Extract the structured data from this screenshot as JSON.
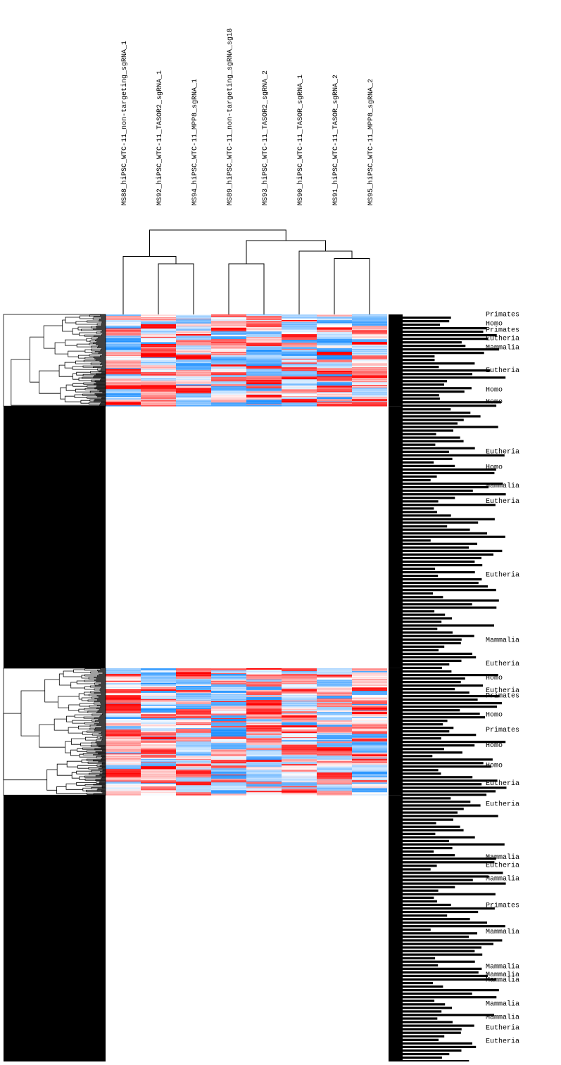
{
  "chart_data": {
    "type": "heatmap",
    "title": "",
    "xlabel": "",
    "ylabel": "",
    "columns": [
      "MS88_hiPSC_WTC-11_non-targeting_sgRNA_1",
      "MS92_hiPSC_WTC-11_TASOR2_sgRNA_1",
      "MS94_hiPSC_WTC-11_MPP8_sgRNA_1",
      "MS89_hiPSC_WTC-11_non-targeting_sgRNA_sg18",
      "MS93_hiPSC_WTC-11_TASOR2_sgRNA_2",
      "MS90_hiPSC_WTC-11_TASOR_sgRNA_1",
      "MS91_hiPSC_WTC-11_TASOR_sgRNA_2",
      "MS95_hiPSC_WTC-11_MPP8_sgRNA_2"
    ],
    "column_dendrogram": {
      "order": [
        0,
        1,
        2,
        3,
        4,
        5,
        6,
        7
      ],
      "merges": [
        {
          "left": "c1",
          "right": "c2",
          "height": 0.48
        },
        {
          "left": "c0",
          "right": "m0",
          "height": 0.55
        },
        {
          "left": "c3",
          "right": "c4",
          "height": 0.48
        },
        {
          "left": "c6",
          "right": "c7",
          "height": 0.53
        },
        {
          "left": "c5",
          "right": "m3",
          "height": 0.6
        },
        {
          "left": "m2",
          "right": "m4",
          "height": 0.7
        },
        {
          "left": "m1",
          "right": "m5",
          "height": 0.8
        }
      ]
    },
    "color_scale": {
      "low": "#1e90ff",
      "mid": "#ffffff",
      "high": "#ff0000",
      "range": [
        -2,
        2
      ]
    },
    "row_blocks": [
      {
        "name": "block-1",
        "rows": 130,
        "filled": true,
        "seed": 11
      },
      {
        "name": "gap-1",
        "rows": 372,
        "filled": false
      },
      {
        "name": "block-2",
        "rows": 180,
        "filled": true,
        "seed": 29
      },
      {
        "name": "gap-2",
        "rows": 378,
        "filled": false
      }
    ],
    "visible_row_labels": [
      {
        "text": "Primates",
        "block": "block-1",
        "frac": 0.02
      },
      {
        "text": "Homo",
        "block": "block-1",
        "frac": 0.12
      },
      {
        "text": "Primates",
        "block": "block-1",
        "frac": 0.19
      },
      {
        "text": "Eutheria",
        "block": "block-1",
        "frac": 0.28
      },
      {
        "text": "Mammalia",
        "block": "block-1",
        "frac": 0.38
      },
      {
        "text": "Eutheria",
        "block": "block-1",
        "frac": 0.63
      },
      {
        "text": "Homo",
        "block": "block-1",
        "frac": 0.84
      },
      {
        "text": "Homo",
        "block": "block-1",
        "frac": 0.97
      },
      {
        "text": "Eutheria",
        "block": "gap-1",
        "frac": 0.18
      },
      {
        "text": "Homo",
        "block": "gap-1",
        "frac": 0.24
      },
      {
        "text": "Mammalia",
        "block": "gap-1",
        "frac": 0.31
      },
      {
        "text": "Eutheria",
        "block": "gap-1",
        "frac": 0.37
      },
      {
        "text": "Eutheria",
        "block": "gap-1",
        "frac": 0.65
      },
      {
        "text": "Mammalia",
        "block": "gap-1",
        "frac": 0.9
      },
      {
        "text": "Eutheria",
        "block": "gap-1",
        "frac": 0.99
      },
      {
        "text": "Homo",
        "block": "block-2",
        "frac": 0.09
      },
      {
        "text": "Eutheria",
        "block": "block-2",
        "frac": 0.19
      },
      {
        "text": "Primates",
        "block": "block-2",
        "frac": 0.23
      },
      {
        "text": "Homo",
        "block": "block-2",
        "frac": 0.38
      },
      {
        "text": "Primates",
        "block": "block-2",
        "frac": 0.5
      },
      {
        "text": "Homo",
        "block": "block-2",
        "frac": 0.62
      },
      {
        "text": "Homo",
        "block": "block-2",
        "frac": 0.78
      },
      {
        "text": "Eutheria",
        "block": "block-2",
        "frac": 0.92
      },
      {
        "text": "Eutheria",
        "block": "gap-2",
        "frac": 0.04
      },
      {
        "text": "Mammalia",
        "block": "gap-2",
        "frac": 0.24
      },
      {
        "text": "Eutheria",
        "block": "gap-2",
        "frac": 0.27
      },
      {
        "text": "Mammalia",
        "block": "gap-2",
        "frac": 0.32
      },
      {
        "text": "Primates",
        "block": "gap-2",
        "frac": 0.42
      },
      {
        "text": "Mammalia",
        "block": "gap-2",
        "frac": 0.52
      },
      {
        "text": "Mammalia",
        "block": "gap-2",
        "frac": 0.65
      },
      {
        "text": "Mammalia",
        "block": "gap-2",
        "frac": 0.68
      },
      {
        "text": "Mammalia",
        "block": "gap-2",
        "frac": 0.7
      },
      {
        "text": "Mammalia",
        "block": "gap-2",
        "frac": 0.79
      },
      {
        "text": "Mammalia",
        "block": "gap-2",
        "frac": 0.84
      },
      {
        "text": "Eutheria",
        "block": "gap-2",
        "frac": 0.88
      },
      {
        "text": "Eutheria",
        "block": "gap-2",
        "frac": 0.93
      }
    ],
    "label_vocabulary": [
      "Homo",
      "Primates",
      "Eutheria",
      "Mammalia"
    ]
  }
}
